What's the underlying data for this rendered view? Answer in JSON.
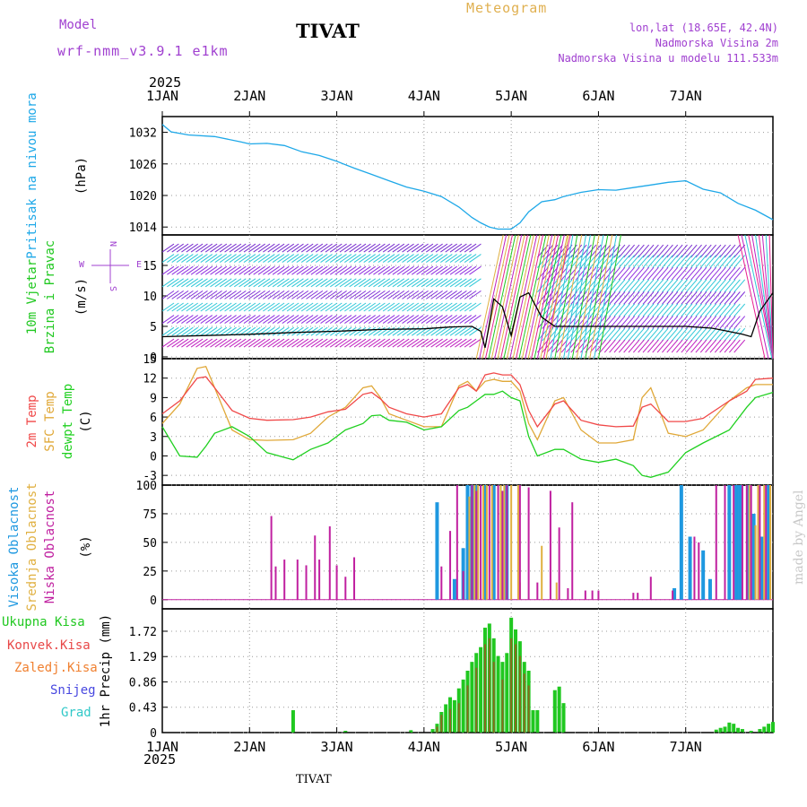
{
  "header": {
    "model_label": "Model",
    "model_name": "wrf-nmm_v3.9.1 e1km",
    "station": "TIVAT",
    "meteogram": "Meteogram",
    "lonlat": "lon,lat (18.65E, 42.4N)",
    "altitude": "Nadmorska Visina 2m",
    "model_altitude": "Nadmorska Visina u modelu 111.533m"
  },
  "footer": {
    "station": "TIVAT",
    "credit": "made by Angel"
  },
  "time_axis": {
    "year": "2025",
    "ticks": [
      "1JAN",
      "2JAN",
      "3JAN",
      "4JAN",
      "5JAN",
      "6JAN",
      "7JAN"
    ]
  },
  "colors": {
    "pressure": "#1ea8e8",
    "temp2m": "#f04848",
    "sfc": "#e0a838",
    "dewpt": "#20d020",
    "high_cloud": "#1e98e0",
    "mid_cloud": "#e0b040",
    "low_cloud": "#c020a0",
    "total_precip": "#20c820",
    "conv_precip": "#e84848",
    "frz_precip": "#f08030",
    "snow": "#4848e0",
    "hail": "#30c8c8",
    "label_purple": "#a040d0"
  },
  "chart_data": [
    {
      "type": "line",
      "panel": "pressure",
      "label_main": "Pritisak na nivou mora",
      "ylabel": "(hPa)",
      "yticks": [
        "1032",
        "1026",
        "1020",
        "1014"
      ],
      "ylim": [
        1012.5,
        1035
      ],
      "x": [
        0,
        0.1,
        0.3,
        0.6,
        0.9,
        1.0,
        1.2,
        1.4,
        1.6,
        1.8,
        2.0,
        2.2,
        2.4,
        2.6,
        2.8,
        3.0,
        3.2,
        3.4,
        3.55,
        3.65,
        3.75,
        3.85,
        4.0,
        4.1,
        4.2,
        4.35,
        4.5,
        4.6,
        4.8,
        5.0,
        5.2,
        5.4,
        5.6,
        5.8,
        6.0,
        6.2,
        6.4,
        6.6,
        6.8,
        7.0
      ],
      "y": [
        1033.5,
        1032.1,
        1031.5,
        1031.2,
        1030.2,
        1029.8,
        1029.9,
        1029.5,
        1028.3,
        1027.6,
        1026.5,
        1025.2,
        1024.0,
        1022.8,
        1021.6,
        1020.8,
        1019.8,
        1017.8,
        1015.8,
        1014.8,
        1014.0,
        1013.6,
        1013.6,
        1014.8,
        1016.9,
        1018.8,
        1019.2,
        1019.8,
        1020.6,
        1021.1,
        1021.0,
        1021.5,
        1022.0,
        1022.5,
        1022.8,
        1021.2,
        1020.5,
        1018.5,
        1017.2,
        1015.4
      ]
    },
    {
      "type": "barbs",
      "panel": "wind",
      "label_main": "10m Vjetar",
      "label_sub": "Brzina i Pravac",
      "ylabel": "(m/s)",
      "yticks": [
        "15",
        "10",
        "5",
        "0"
      ],
      "ylim": [
        -0.3,
        20
      ],
      "compass": [
        "N",
        "W",
        "E",
        "S"
      ],
      "speed_x": [
        0,
        0.5,
        1.0,
        1.5,
        2.0,
        2.5,
        3.0,
        3.3,
        3.55,
        3.65,
        3.7,
        3.8,
        3.9,
        4.0,
        4.1,
        4.2,
        4.35,
        4.5,
        5.0,
        5.5,
        6.0,
        6.3,
        6.45,
        6.55,
        6.65,
        6.75,
        6.85,
        6.95,
        7.0
      ],
      "speed": [
        3.3,
        3.5,
        3.7,
        4.0,
        4.2,
        4.5,
        4.6,
        4.9,
        5.0,
        4.2,
        1.5,
        9.5,
        8.2,
        3.5,
        9.8,
        10.5,
        6.5,
        5.0,
        5.0,
        5.0,
        5.0,
        4.7,
        4.3,
        4.0,
        3.7,
        3.3,
        7.5,
        9.5,
        10.5
      ]
    },
    {
      "type": "line",
      "panel": "temperature",
      "label_t2m": "2m Temp",
      "label_sfc": "SFC Temp",
      "label_dew": "dewpt Temp",
      "ylabel": "(C)",
      "yticks": [
        "15",
        "12",
        "9",
        "6",
        "3",
        "0",
        "-3"
      ],
      "ylim": [
        -4.5,
        15
      ],
      "x": [
        0,
        0.2,
        0.4,
        0.5,
        0.6,
        0.8,
        1.0,
        1.2,
        1.5,
        1.7,
        1.9,
        2.1,
        2.3,
        2.4,
        2.5,
        2.6,
        2.8,
        3.0,
        3.2,
        3.4,
        3.5,
        3.6,
        3.7,
        3.8,
        3.9,
        4.0,
        4.1,
        4.2,
        4.3,
        4.5,
        4.6,
        4.8,
        5.0,
        5.2,
        5.4,
        5.5,
        5.6,
        5.8,
        6.0,
        6.2,
        6.5,
        6.7,
        6.8,
        7.0
      ],
      "t2m": [
        6.5,
        8.5,
        12.0,
        12.2,
        10.5,
        7.0,
        5.8,
        5.5,
        5.6,
        6.0,
        6.8,
        7.2,
        9.5,
        9.8,
        8.8,
        7.5,
        6.5,
        6.0,
        6.5,
        10.5,
        11.0,
        10.0,
        12.5,
        12.8,
        12.5,
        12.5,
        11.0,
        7.0,
        4.5,
        8.0,
        8.5,
        5.5,
        4.8,
        4.5,
        4.6,
        7.5,
        8.0,
        5.3,
        5.3,
        5.8,
        8.5,
        10.0,
        11.8,
        12.0
      ],
      "sfc": [
        5.0,
        8.0,
        13.5,
        13.8,
        10.5,
        4.0,
        2.5,
        2.4,
        2.5,
        3.5,
        6.0,
        7.5,
        10.5,
        10.8,
        9.0,
        6.5,
        5.5,
        4.5,
        4.5,
        10.8,
        11.5,
        10.0,
        11.5,
        11.8,
        11.5,
        11.5,
        10.0,
        5.0,
        2.5,
        8.5,
        9.0,
        4.0,
        2.0,
        2.0,
        2.5,
        9.0,
        10.5,
        3.5,
        3.0,
        4.0,
        8.5,
        10.5,
        11.0,
        11.0
      ],
      "dewpt": [
        4.5,
        0.0,
        -0.2,
        1.5,
        3.5,
        4.5,
        3.0,
        0.5,
        -0.6,
        1.0,
        2.0,
        4.0,
        5.0,
        6.2,
        6.3,
        5.5,
        5.2,
        4.0,
        4.5,
        7.0,
        7.5,
        8.5,
        9.5,
        9.5,
        10.0,
        9.0,
        8.5,
        3.0,
        0.0,
        1.0,
        1.0,
        -0.5,
        -1.0,
        -0.5,
        -1.5,
        -3.0,
        -3.3,
        -2.5,
        0.5,
        2.0,
        4.0,
        7.5,
        9.0,
        9.8
      ]
    },
    {
      "type": "bar",
      "panel": "cloud",
      "label_high": "Visoka Oblacnost",
      "label_mid": "Srednja Oblacnost",
      "label_low": "Niska Oblacnost",
      "ylabel": "(%)",
      "yticks": [
        "100",
        "75",
        "50",
        "25",
        "0"
      ],
      "ylim": [
        -8,
        100
      ],
      "high": [
        [
          3.15,
          85
        ],
        [
          3.35,
          18
        ],
        [
          3.45,
          45
        ],
        [
          3.5,
          100
        ],
        [
          3.55,
          100
        ],
        [
          3.6,
          100
        ],
        [
          3.7,
          100
        ],
        [
          3.8,
          100
        ],
        [
          3.95,
          100
        ],
        [
          5.87,
          10
        ],
        [
          5.95,
          100
        ],
        [
          6.05,
          55
        ],
        [
          6.2,
          43
        ],
        [
          6.28,
          18
        ],
        [
          6.5,
          100
        ],
        [
          6.58,
          100
        ],
        [
          6.62,
          100
        ],
        [
          6.72,
          100
        ],
        [
          6.78,
          75
        ],
        [
          6.87,
          55
        ],
        [
          6.95,
          100
        ]
      ],
      "mid": [
        [
          3.52,
          90
        ],
        [
          3.58,
          100
        ],
        [
          3.62,
          100
        ],
        [
          3.68,
          100
        ],
        [
          3.72,
          100
        ],
        [
          3.78,
          100
        ],
        [
          3.85,
          100
        ],
        [
          3.88,
          100
        ],
        [
          3.92,
          100
        ],
        [
          4.0,
          100
        ],
        [
          4.08,
          100
        ],
        [
          4.1,
          15
        ],
        [
          4.35,
          47
        ],
        [
          4.52,
          15
        ],
        [
          6.73,
          100
        ],
        [
          6.8,
          65
        ],
        [
          6.83,
          100
        ],
        [
          6.9,
          100
        ],
        [
          6.97,
          100
        ]
      ],
      "low": [
        [
          1.25,
          73
        ],
        [
          1.3,
          29
        ],
        [
          1.4,
          35
        ],
        [
          1.55,
          35
        ],
        [
          1.65,
          30
        ],
        [
          1.75,
          56
        ],
        [
          1.8,
          35
        ],
        [
          1.92,
          64
        ],
        [
          2.0,
          30
        ],
        [
          2.1,
          20
        ],
        [
          2.2,
          37
        ],
        [
          3.2,
          29
        ],
        [
          3.3,
          60
        ],
        [
          3.38,
          100
        ],
        [
          3.45,
          25
        ],
        [
          3.55,
          100
        ],
        [
          3.6,
          95
        ],
        [
          3.65,
          100
        ],
        [
          3.75,
          100
        ],
        [
          3.85,
          100
        ],
        [
          3.9,
          95
        ],
        [
          3.95,
          100
        ],
        [
          4.1,
          100
        ],
        [
          4.2,
          98
        ],
        [
          4.3,
          15
        ],
        [
          4.45,
          95
        ],
        [
          4.55,
          63
        ],
        [
          4.65,
          10
        ],
        [
          4.7,
          85
        ],
        [
          4.85,
          8
        ],
        [
          4.93,
          8
        ],
        [
          5.0,
          8
        ],
        [
          5.4,
          6
        ],
        [
          5.45,
          6
        ],
        [
          5.6,
          20
        ],
        [
          5.85,
          8
        ],
        [
          6.1,
          55
        ],
        [
          6.15,
          50
        ],
        [
          6.35,
          100
        ],
        [
          6.45,
          100
        ],
        [
          6.55,
          100
        ],
        [
          6.65,
          100
        ],
        [
          6.7,
          100
        ],
        [
          6.75,
          100
        ],
        [
          6.85,
          100
        ],
        [
          6.92,
          100
        ]
      ]
    },
    {
      "type": "bar",
      "panel": "precip",
      "label_total": "Ukupna Kisa",
      "label_conv": "Konvek.Kisa",
      "label_frz": "Zaledj.Kisa",
      "label_snow": "Snijeg",
      "label_hail": "Grad",
      "ylabel": "1hr Precip (mm)",
      "yticks": [
        "1.72",
        "1.29",
        "0.86",
        "0.43",
        "0"
      ],
      "ylim": [
        0,
        2.1
      ],
      "total": [
        [
          1.5,
          0.38
        ],
        [
          2.1,
          0.03
        ],
        [
          2.85,
          0.04
        ],
        [
          3.1,
          0.06
        ],
        [
          3.15,
          0.15
        ],
        [
          3.2,
          0.35
        ],
        [
          3.25,
          0.48
        ],
        [
          3.3,
          0.6
        ],
        [
          3.35,
          0.55
        ],
        [
          3.4,
          0.75
        ],
        [
          3.45,
          0.9
        ],
        [
          3.5,
          1.05
        ],
        [
          3.55,
          1.2
        ],
        [
          3.6,
          1.35
        ],
        [
          3.65,
          1.45
        ],
        [
          3.7,
          1.78
        ],
        [
          3.75,
          1.85
        ],
        [
          3.8,
          1.6
        ],
        [
          3.85,
          1.3
        ],
        [
          3.9,
          1.2
        ],
        [
          3.95,
          1.35
        ],
        [
          4.0,
          1.95
        ],
        [
          4.05,
          1.75
        ],
        [
          4.1,
          1.55
        ],
        [
          4.15,
          1.2
        ],
        [
          4.2,
          1.05
        ],
        [
          4.25,
          0.38
        ],
        [
          4.3,
          0.38
        ],
        [
          4.5,
          0.72
        ],
        [
          4.55,
          0.78
        ],
        [
          4.6,
          0.5
        ],
        [
          6.35,
          0.05
        ],
        [
          6.4,
          0.08
        ],
        [
          6.45,
          0.1
        ],
        [
          6.5,
          0.17
        ],
        [
          6.55,
          0.15
        ],
        [
          6.6,
          0.08
        ],
        [
          6.65,
          0.06
        ],
        [
          6.75,
          0.03
        ],
        [
          6.85,
          0.06
        ],
        [
          6.9,
          0.1
        ],
        [
          6.95,
          0.15
        ],
        [
          7.0,
          0.18
        ]
      ],
      "conv": [
        [
          3.15,
          0.1
        ],
        [
          3.2,
          0.3
        ],
        [
          3.3,
          0.4
        ],
        [
          3.4,
          0.5
        ],
        [
          3.5,
          0.8
        ],
        [
          3.6,
          1.1
        ],
        [
          3.7,
          1.5
        ],
        [
          3.75,
          1.6
        ],
        [
          3.8,
          1.2
        ],
        [
          3.9,
          0.9
        ],
        [
          4.0,
          1.6
        ],
        [
          4.05,
          1.5
        ],
        [
          4.1,
          1.3
        ],
        [
          4.15,
          1.0
        ],
        [
          4.2,
          0.8
        ]
      ]
    }
  ]
}
